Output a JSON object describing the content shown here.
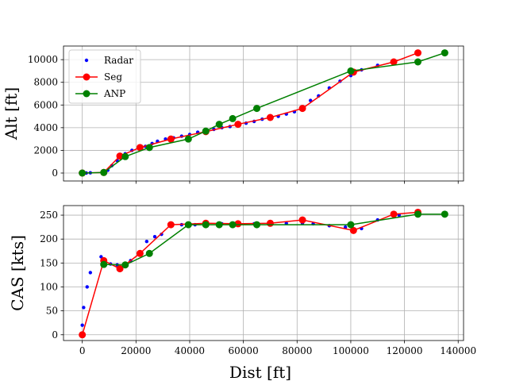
{
  "chart_data": [
    {
      "type": "line",
      "ylabel": "Alt [ft]",
      "xlabel": "",
      "xlim": [
        -7000,
        142000
      ],
      "ylim": [
        -700,
        11200
      ],
      "xticks": [
        0,
        20000,
        40000,
        60000,
        80000,
        100000,
        120000,
        140000
      ],
      "yticks": [
        0,
        2000,
        4000,
        6000,
        8000,
        10000
      ],
      "show_x_ticklabels": false,
      "grid": true,
      "legend": {
        "position": "upper-left",
        "entries": [
          "Radar",
          "Seg",
          "ANP"
        ]
      },
      "series": [
        {
          "name": "Radar",
          "color": "#0000ff",
          "style": "dots",
          "x": [
            0,
            1500,
            3000,
            8000,
            9500,
            11000,
            13000,
            16000,
            18500,
            21000,
            23500,
            26000,
            28000,
            31000,
            34000,
            37000,
            40000,
            43000,
            46000,
            49000,
            52000,
            55000,
            58000,
            61000,
            64000,
            67000,
            70000,
            73000,
            76000,
            79000,
            82000,
            85000,
            88000,
            92000,
            96000,
            100000,
            104000,
            110000,
            116000
          ],
          "y": [
            0,
            0,
            20,
            100,
            250,
            650,
            1100,
            1700,
            2000,
            2200,
            2350,
            2600,
            2800,
            3000,
            3100,
            3250,
            3400,
            3600,
            3750,
            3850,
            4000,
            4100,
            4250,
            4400,
            4550,
            4750,
            4850,
            5000,
            5200,
            5400,
            5700,
            6400,
            6800,
            7500,
            8100,
            8600,
            9100,
            9500,
            9800
          ]
        },
        {
          "name": "Seg",
          "color": "#ff0000",
          "style": "line-markers",
          "x": [
            0,
            8000,
            14000,
            21500,
            33000,
            46000,
            58000,
            70000,
            82000,
            101000,
            116000,
            125000
          ],
          "y": [
            0,
            50,
            1500,
            2250,
            3000,
            3650,
            4300,
            4900,
            5700,
            8900,
            9800,
            10600
          ]
        },
        {
          "name": "ANP",
          "color": "#008000",
          "style": "line-markers",
          "x": [
            0,
            8000,
            16000,
            25000,
            39500,
            46000,
            51000,
            56000,
            65000,
            100000,
            125000,
            135000
          ],
          "y": [
            0,
            50,
            1450,
            2250,
            3000,
            3700,
            4300,
            4800,
            5700,
            9000,
            9800,
            10600
          ]
        }
      ]
    },
    {
      "type": "line",
      "ylabel": "CAS [kts]",
      "xlabel": "Dist [ft]",
      "xlim": [
        -7000,
        142000
      ],
      "ylim": [
        -12,
        270
      ],
      "xticks": [
        0,
        20000,
        40000,
        60000,
        80000,
        100000,
        120000,
        140000
      ],
      "yticks": [
        0,
        50,
        100,
        150,
        200,
        250
      ],
      "show_x_ticklabels": true,
      "grid": true,
      "series": [
        {
          "name": "Radar",
          "color": "#0000ff",
          "style": "dots",
          "x": [
            0,
            500,
            1800,
            3000,
            7000,
            8500,
            10500,
            13000,
            18000,
            24000,
            27000,
            29500,
            37000,
            42000,
            46500,
            52000,
            58000,
            64000,
            70000,
            76000,
            82000,
            86000,
            92000,
            98000,
            104000,
            110000,
            118000,
            125000
          ],
          "y": [
            20,
            57,
            100,
            130,
            163,
            155,
            148,
            146,
            155,
            195,
            205,
            210,
            230,
            230,
            230,
            232,
            232,
            232,
            233,
            233,
            233,
            232,
            228,
            225,
            222,
            240,
            250,
            255
          ]
        },
        {
          "name": "Seg",
          "color": "#ff0000",
          "style": "line-markers",
          "x": [
            0,
            8000,
            14000,
            21500,
            33000,
            46000,
            58000,
            70000,
            82000,
            101000,
            116000,
            125000
          ],
          "y": [
            0,
            155,
            138,
            170,
            230,
            233,
            232,
            233,
            240,
            218,
            252,
            256
          ]
        },
        {
          "name": "ANP",
          "color": "#008000",
          "style": "line-markers",
          "x": [
            0,
            8000,
            16000,
            25000,
            39500,
            46000,
            51000,
            56000,
            65000,
            100000,
            125000,
            135000
          ],
          "y": [
            null,
            147,
            146,
            170,
            230,
            230,
            230,
            230,
            230,
            230,
            252,
            252
          ]
        }
      ]
    }
  ]
}
